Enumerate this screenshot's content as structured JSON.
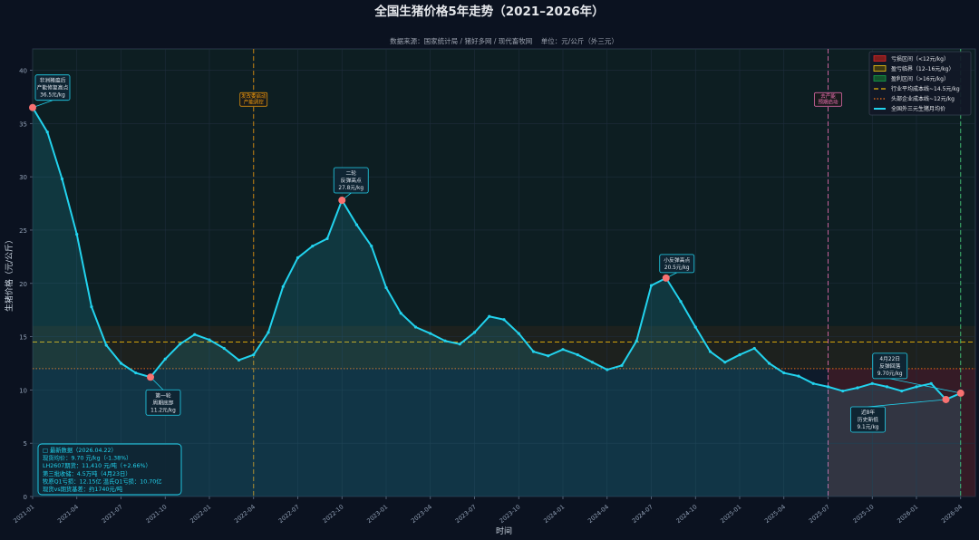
{
  "chart_data": {
    "type": "line",
    "title": "全国生猪价格5年走势（2021–2026年）",
    "subtitle": "数据来源：国家统计局 / 猪好多网 / 现代畜牧网    单位：元/公斤（外三元）",
    "xlabel": "时间",
    "ylabel": "生猪价格（元/公斤）",
    "ylim": [
      0,
      42
    ],
    "yticks": [
      0,
      5,
      10,
      15,
      20,
      25,
      30,
      35,
      40
    ],
    "xlim": [
      0,
      64
    ],
    "xticks": [
      {
        "x": 0,
        "label": "2021-01"
      },
      {
        "x": 3,
        "label": "2021-04"
      },
      {
        "x": 6,
        "label": "2021-07"
      },
      {
        "x": 9,
        "label": "2021-10"
      },
      {
        "x": 12,
        "label": "2022-01"
      },
      {
        "x": 15,
        "label": "2022-04"
      },
      {
        "x": 18,
        "label": "2022-07"
      },
      {
        "x": 21,
        "label": "2022-10"
      },
      {
        "x": 24,
        "label": "2023-01"
      },
      {
        "x": 27,
        "label": "2023-04"
      },
      {
        "x": 30,
        "label": "2023-07"
      },
      {
        "x": 33,
        "label": "2023-10"
      },
      {
        "x": 36,
        "label": "2024-01"
      },
      {
        "x": 39,
        "label": "2024-04"
      },
      {
        "x": 42,
        "label": "2024-07"
      },
      {
        "x": 45,
        "label": "2024-10"
      },
      {
        "x": 48,
        "label": "2025-01"
      },
      {
        "x": 51,
        "label": "2025-04"
      },
      {
        "x": 54,
        "label": "2025-07"
      },
      {
        "x": 57,
        "label": "2025-10"
      },
      {
        "x": 60,
        "label": "2026-01"
      },
      {
        "x": 63,
        "label": "2026-04"
      }
    ],
    "grid": true,
    "legend_position": "top-right",
    "series": [
      {
        "name": "全国外三元生猪月均价",
        "color": "#22d3ee",
        "x": [
          0,
          1,
          2,
          3,
          4,
          5,
          6,
          7,
          8,
          9,
          10,
          11,
          12,
          13,
          14,
          15,
          16,
          17,
          18,
          19,
          20,
          21,
          22,
          23,
          24,
          25,
          26,
          27,
          28,
          29,
          30,
          31,
          32,
          33,
          34,
          35,
          36,
          37,
          38,
          39,
          40,
          41,
          42,
          43,
          44,
          45,
          46,
          47,
          48,
          49,
          50,
          51,
          52,
          53,
          54,
          55,
          56,
          57,
          58,
          59,
          60,
          61,
          62,
          63
        ],
        "values": [
          36.5,
          34.2,
          29.8,
          24.6,
          17.8,
          14.2,
          12.5,
          11.6,
          11.2,
          12.9,
          14.3,
          15.2,
          14.7,
          13.9,
          12.8,
          13.3,
          15.4,
          19.7,
          22.4,
          23.5,
          24.2,
          27.8,
          25.5,
          23.5,
          19.6,
          17.2,
          15.9,
          15.3,
          14.6,
          14.3,
          15.4,
          16.9,
          16.6,
          15.3,
          13.6,
          13.2,
          13.8,
          13.3,
          12.6,
          11.9,
          12.3,
          14.6,
          19.8,
          20.5,
          18.3,
          15.9,
          13.6,
          12.6,
          13.3,
          13.9,
          12.5,
          11.6,
          11.3,
          10.6,
          10.3,
          9.9,
          10.2,
          10.6,
          10.3,
          9.9,
          10.3,
          10.6,
          9.1,
          9.7
        ]
      }
    ],
    "zones": [
      {
        "name": "亏损区间（<12元/kg）",
        "from": 0,
        "to": 12,
        "color": "#7f1d1d"
      },
      {
        "name": "盈亏临界（12–16元/kg）",
        "from": 12,
        "to": 16,
        "color": "#facc15"
      },
      {
        "name": "盈利区间（>16元/kg）",
        "from": 16,
        "to": 42,
        "color": "#166534"
      }
    ],
    "hlines": [
      {
        "name": "行业平均成本线~14.5元/kg",
        "y": 14.5,
        "color": "#eab308",
        "style": "dashed"
      },
      {
        "name": "头部企业成本线~12元/kg",
        "y": 12,
        "color": "#f97316",
        "style": "dotted"
      }
    ],
    "vlines": [
      {
        "x": 15,
        "label": "发改委启动\n产能调控",
        "color": "#f59e0b"
      },
      {
        "x": 54,
        "label": "去产能\n预期启动",
        "color": "#f472b6"
      },
      {
        "x": 63,
        "label": "",
        "color": "#4ade80"
      }
    ],
    "annotations": [
      {
        "x": 0,
        "y": 36.5,
        "text": "非洲猪瘟后\n产能修复高点\n36.5元/kg"
      },
      {
        "x": 8,
        "y": 11.2,
        "text": "第一轮\n周期底部\n11.2元/kg"
      },
      {
        "x": 21,
        "y": 27.8,
        "text": "二轮\n反弹高点\n27.8元/kg"
      },
      {
        "x": 43,
        "y": 20.5,
        "text": "小反弹高点\n20.5元/kg"
      },
      {
        "x": 63,
        "y": 9.7,
        "text": "4月22日\n反弹回落\n9.70元/kg"
      },
      {
        "x": 62,
        "y": 9.1,
        "text": "近8年\n历史新低\n9.1元/kg"
      }
    ],
    "infobox": [
      "□ 最新数据（2026.04.22）",
      "现货均价：9.70 元/kg（-1.38%）",
      "LH2607期货：11,410 元/吨（+2.66%）",
      "第三批收储：4.5万吨（4月23日）",
      "牧原Q1亏损：12.15亿  温氏Q1亏损：10.70亿",
      "现货vs期货基差：约1740元/吨"
    ]
  }
}
